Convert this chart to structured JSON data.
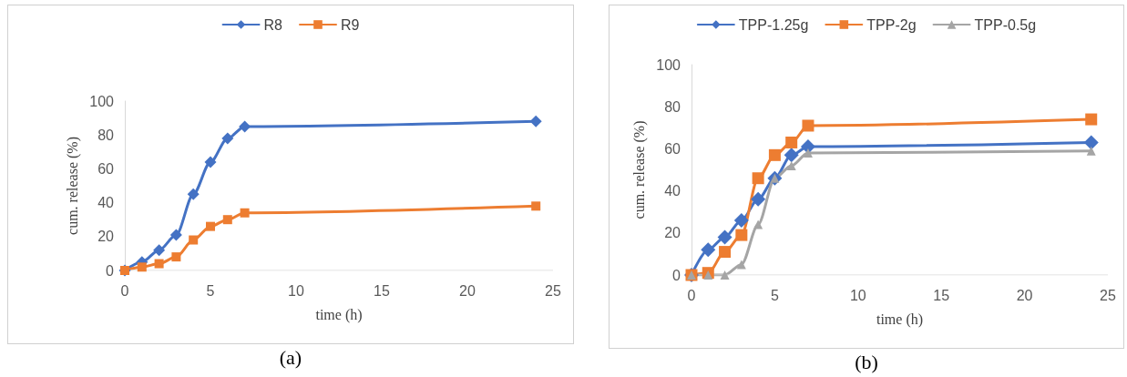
{
  "chart_data": [
    {
      "type": "line",
      "xlabel": "time (h)",
      "ylabel": "cum. release (%)",
      "x": [
        0,
        1,
        2,
        3,
        4,
        5,
        6,
        7,
        24
      ],
      "xlim": [
        0,
        25
      ],
      "xticks": [
        0,
        5,
        10,
        15,
        20,
        25
      ],
      "ylim": [
        0,
        100
      ],
      "yticks": [
        0,
        20,
        40,
        60,
        80,
        100
      ],
      "grid": false,
      "legend": "top",
      "annotations": [
        "(a)"
      ],
      "series": [
        {
          "name": "R8",
          "color": "#4472c4",
          "marker": "diamond",
          "values": [
            0,
            5,
            12,
            21,
            45,
            64,
            78,
            85,
            88
          ]
        },
        {
          "name": "R9",
          "color": "#ed7d31",
          "marker": "square",
          "values": [
            0,
            2,
            4,
            8,
            18,
            26,
            30,
            34,
            38
          ]
        }
      ]
    },
    {
      "type": "line",
      "xlabel": "time (h)",
      "ylabel": "cum. release (%)",
      "x": [
        0,
        1,
        2,
        3,
        4,
        5,
        6,
        7,
        24
      ],
      "xlim": [
        0,
        25
      ],
      "xticks": [
        0,
        5,
        10,
        15,
        20,
        25
      ],
      "ylim": [
        0,
        100
      ],
      "yticks": [
        0,
        20,
        40,
        60,
        80,
        100
      ],
      "grid": false,
      "legend": "top",
      "annotations": [
        "(b)"
      ],
      "series": [
        {
          "name": "TPP-1.25g",
          "color": "#4472c4",
          "marker": "diamond",
          "values": [
            0,
            12,
            18,
            26,
            36,
            46,
            57,
            61,
            63
          ]
        },
        {
          "name": "TPP-2g",
          "color": "#ed7d31",
          "marker": "square",
          "values": [
            0,
            1,
            11,
            19,
            46,
            57,
            63,
            71,
            74
          ]
        },
        {
          "name": "TPP-0.5g",
          "color": "#a5a5a5",
          "marker": "triangle",
          "values": [
            0,
            0,
            0,
            5,
            24,
            46,
            52,
            58,
            59
          ]
        }
      ]
    }
  ]
}
